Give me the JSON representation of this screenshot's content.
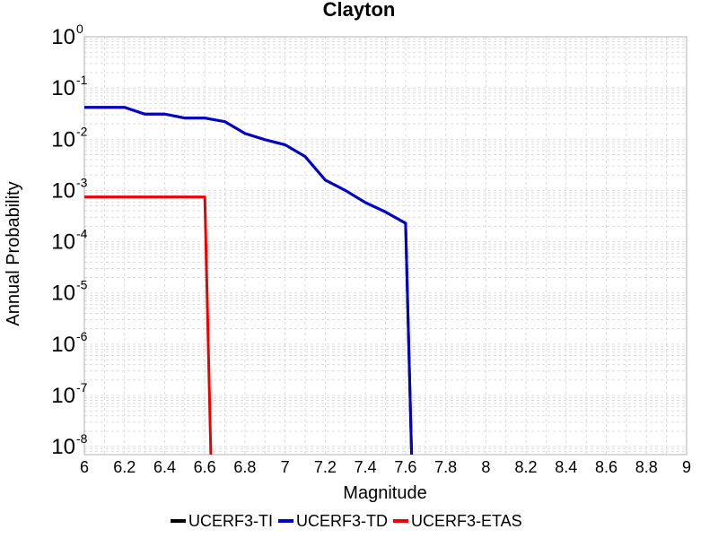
{
  "chart_data": {
    "type": "line",
    "title": "Clayton",
    "xlabel": "Magnitude",
    "ylabel": "Annual Probability",
    "y_scale": "log",
    "xlim": [
      6,
      9
    ],
    "ylim": [
      7e-09,
      1
    ],
    "grid": true,
    "legend_position": "bottom",
    "x_ticks": [
      "6",
      "6.2",
      "6.4",
      "6.6",
      "6.8",
      "7",
      "7.2",
      "7.4",
      "7.6",
      "7.8",
      "8",
      "8.2",
      "8.4",
      "8.6",
      "8.8",
      "9"
    ],
    "y_ticks": [
      {
        "base": "10",
        "exp": "0"
      },
      {
        "base": "10",
        "exp": "-1"
      },
      {
        "base": "10",
        "exp": "-2"
      },
      {
        "base": "10",
        "exp": "-3"
      },
      {
        "base": "10",
        "exp": "-4"
      },
      {
        "base": "10",
        "exp": "-5"
      },
      {
        "base": "10",
        "exp": "-6"
      },
      {
        "base": "10",
        "exp": "-7"
      },
      {
        "base": "10",
        "exp": "-8"
      }
    ],
    "series": [
      {
        "name": "UCERF3-TI",
        "color": "#000000",
        "x": [
          6.0,
          6.2,
          6.3,
          6.4,
          6.5,
          6.6,
          6.7,
          6.8,
          6.9,
          7.0,
          7.1,
          7.2,
          7.3,
          7.4,
          7.5,
          7.6,
          7.63
        ],
        "y": [
          0.042,
          0.042,
          0.031,
          0.031,
          0.026,
          0.026,
          0.022,
          0.013,
          0.0098,
          0.0078,
          0.0046,
          0.0016,
          0.001,
          0.00058,
          0.00038,
          0.00023,
          7e-09
        ]
      },
      {
        "name": "UCERF3-TD",
        "color": "#0000cc",
        "x": [
          6.0,
          6.2,
          6.3,
          6.4,
          6.5,
          6.6,
          6.7,
          6.8,
          6.9,
          7.0,
          7.1,
          7.2,
          7.3,
          7.4,
          7.5,
          7.6,
          7.63
        ],
        "y": [
          0.042,
          0.042,
          0.031,
          0.031,
          0.026,
          0.026,
          0.022,
          0.013,
          0.0098,
          0.0078,
          0.0046,
          0.0016,
          0.001,
          0.00058,
          0.00038,
          0.00023,
          7e-09
        ]
      },
      {
        "name": "UCERF3-ETAS",
        "color": "#ee0000",
        "x": [
          6.0,
          6.6,
          6.63
        ],
        "y": [
          0.00075,
          0.00075,
          7e-09
        ]
      }
    ]
  }
}
